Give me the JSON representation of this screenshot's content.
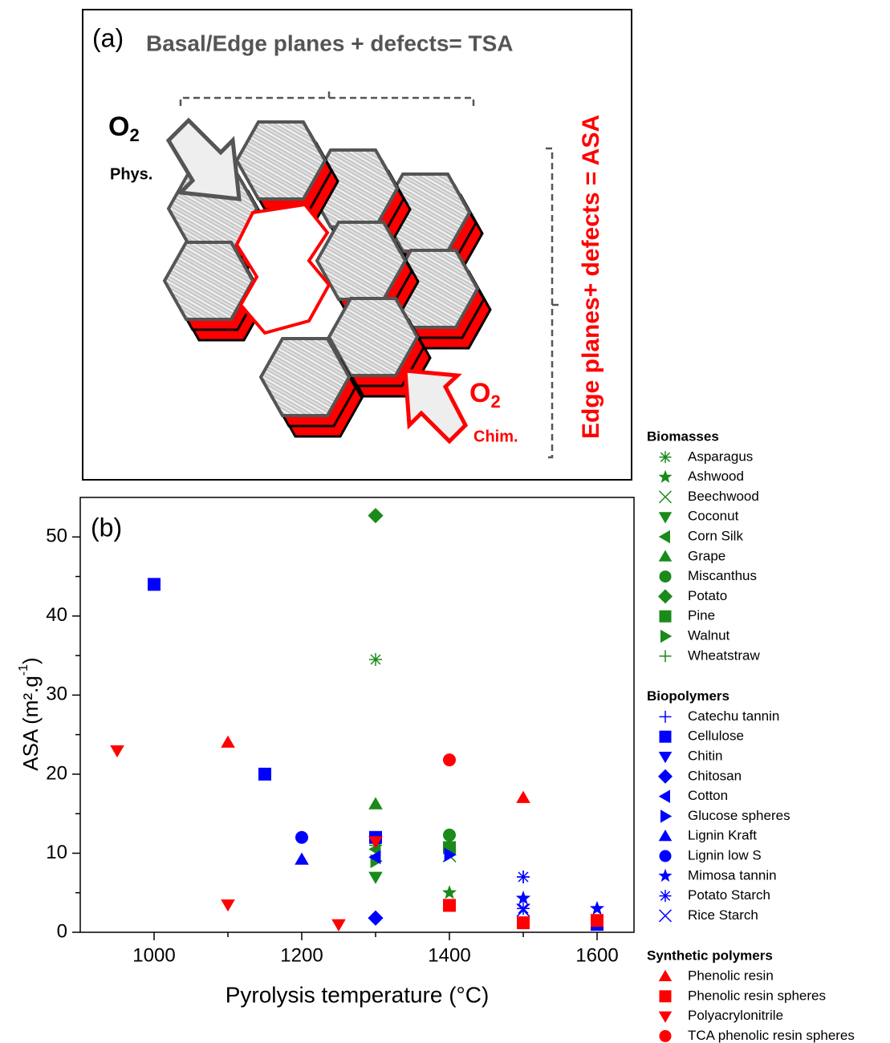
{
  "diagram": {
    "label": "(a)",
    "top_text": "Basal/Edge planes + defects= TSA",
    "side_text": "Edge planes+ defects = ASA",
    "phys": {
      "symbol": "O",
      "subscript": "2",
      "note": "Phys."
    },
    "chim": {
      "symbol": "O",
      "subscript": "2",
      "note": "Chim."
    }
  },
  "chart_data": {
    "type": "scatter",
    "label": "(b)",
    "xlabel": "Pyrolysis temperature (°C)",
    "ylabel": {
      "text": "ASA (m².g",
      "sup": "-1",
      "end": ")"
    },
    "xlim": [
      900,
      1650
    ],
    "xticks": [
      1000,
      1200,
      1400,
      1600
    ],
    "xminorticks": [
      1100,
      1300,
      1500
    ],
    "ylim": [
      0,
      55
    ],
    "yticks": [
      0,
      10,
      20,
      30,
      40,
      50
    ],
    "yminorticks": [
      5,
      15,
      25,
      35,
      45
    ],
    "groups": [
      {
        "name": "Biomasses",
        "color": "#1a8a1a",
        "series": [
          {
            "name": "Asparagus",
            "marker": "asterisk",
            "x": [
              1300
            ],
            "values": [
              34.5
            ]
          },
          {
            "name": "Ashwood",
            "marker": "star",
            "x": [
              1400
            ],
            "values": [
              5
            ]
          },
          {
            "name": "Beechwood",
            "marker": "x",
            "x": [
              1400
            ],
            "values": [
              9.7
            ]
          },
          {
            "name": "Coconut",
            "marker": "down",
            "x": [
              1300
            ],
            "values": [
              7
            ]
          },
          {
            "name": "Corn Silk",
            "marker": "left",
            "x": [
              1300
            ],
            "values": [
              10.5
            ]
          },
          {
            "name": "Grape",
            "marker": "up",
            "x": [
              1300
            ],
            "values": [
              16.2
            ]
          },
          {
            "name": "Miscanthus",
            "marker": "circle",
            "x": [
              1400
            ],
            "values": [
              12.3
            ]
          },
          {
            "name": "Potato",
            "marker": "diamond",
            "x": [
              1300
            ],
            "values": [
              52.7
            ]
          },
          {
            "name": "Pine",
            "marker": "square",
            "x": [
              1400
            ],
            "values": [
              10.7
            ]
          },
          {
            "name": "Walnut",
            "marker": "right",
            "x": [
              1300
            ],
            "values": [
              9
            ]
          },
          {
            "name": "Wheatstraw",
            "marker": "plus",
            "x": [
              1300
            ],
            "values": [
              11
            ]
          }
        ]
      },
      {
        "name": "Biopolymers",
        "color": "#0000ff",
        "series": [
          {
            "name": "Catechu tannin",
            "marker": "plus",
            "x": [
              1500
            ],
            "values": [
              7
            ]
          },
          {
            "name": "Cellulose",
            "marker": "square",
            "x": [
              1000,
              1150,
              1300,
              1600
            ],
            "values": [
              44,
              20,
              12,
              1
            ]
          },
          {
            "name": "Chitin",
            "marker": "down",
            "x": [
              1300
            ],
            "values": [
              11.5
            ]
          },
          {
            "name": "Chitosan",
            "marker": "diamond",
            "x": [
              1300
            ],
            "values": [
              1.8
            ]
          },
          {
            "name": "Cotton",
            "marker": "left",
            "x": [
              1300
            ],
            "values": [
              9.5
            ]
          },
          {
            "name": "Glucose spheres",
            "marker": "right",
            "x": [
              1400
            ],
            "values": [
              9.8
            ]
          },
          {
            "name": "Lignin Kraft",
            "marker": "up",
            "x": [
              1200
            ],
            "values": [
              9.2
            ]
          },
          {
            "name": "Lignin low S",
            "marker": "circle",
            "x": [
              1200
            ],
            "values": [
              12
            ]
          },
          {
            "name": "Mimosa tannin",
            "marker": "star",
            "x": [
              1500,
              1600
            ],
            "values": [
              4.3,
              3
            ]
          },
          {
            "name": "Potato Starch",
            "marker": "asterisk",
            "x": [
              1500,
              1500
            ],
            "values": [
              7,
              3
            ]
          },
          {
            "name": "Rice Starch",
            "marker": "x",
            "x": [
              1500
            ],
            "values": [
              2.8
            ]
          }
        ]
      },
      {
        "name": "Synthetic polymers",
        "color": "#ff0000",
        "series": [
          {
            "name": "Phenolic resin",
            "marker": "up",
            "x": [
              1100,
              1500
            ],
            "values": [
              24,
              17
            ]
          },
          {
            "name": "Phenolic resin spheres",
            "marker": "square",
            "x": [
              1400,
              1500,
              1600
            ],
            "values": [
              3.4,
              1.2,
              1.5
            ]
          },
          {
            "name": "Polyacrylonitrile",
            "marker": "down",
            "x": [
              950,
              1100,
              1250,
              1300
            ],
            "values": [
              23,
              3.5,
              1,
              11.5
            ]
          },
          {
            "name": "TCA phenolic resin spheres",
            "marker": "circle",
            "x": [
              1400
            ],
            "values": [
              21.8
            ]
          }
        ]
      }
    ]
  }
}
